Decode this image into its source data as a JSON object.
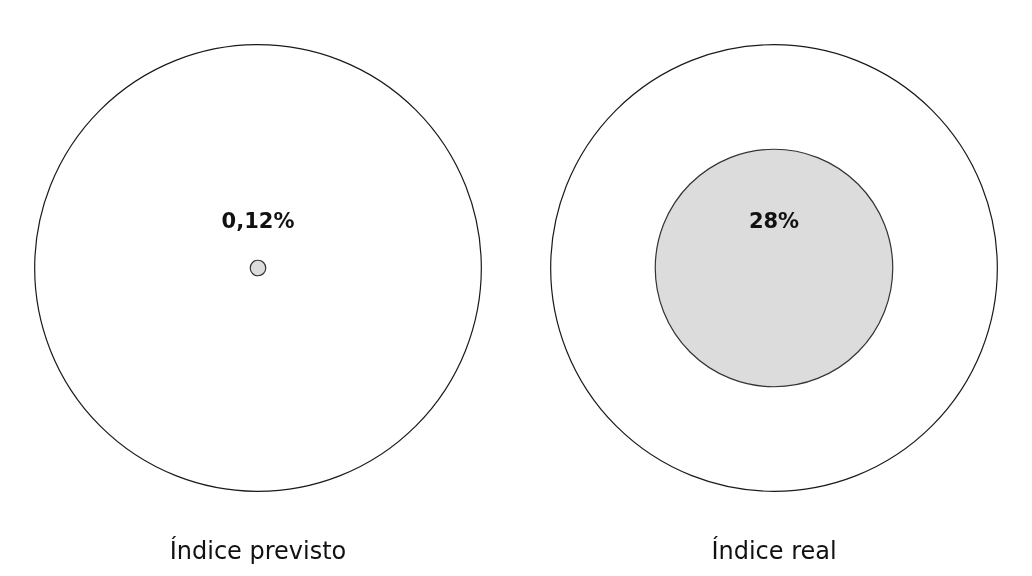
{
  "chart_data": {
    "type": "other",
    "categories": [
      "Índice previsto",
      "Índice real"
    ],
    "values": [
      0.12,
      28
    ],
    "value_labels": [
      "0,12%",
      "28%"
    ],
    "color": "#dcdcdc"
  }
}
